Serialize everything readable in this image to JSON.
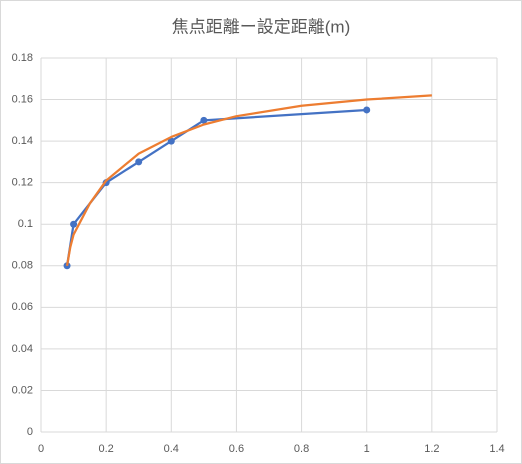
{
  "chart_data": {
    "type": "scatter",
    "title": "焦点距離ー設定距離(m)",
    "series": [
      {
        "color": "#4472c4",
        "markers": true,
        "x": [
          0.08,
          0.1,
          0.2,
          0.3,
          0.4,
          0.5,
          1.0
        ],
        "values": [
          0.08,
          0.1,
          0.12,
          0.13,
          0.14,
          0.15,
          0.155
        ]
      },
      {
        "color": "#ed7d31",
        "markers": false,
        "x": [
          0.08,
          0.09,
          0.1,
          0.15,
          0.2,
          0.3,
          0.4,
          0.5,
          0.6,
          0.8,
          1.0,
          1.2
        ],
        "values": [
          0.08,
          0.089,
          0.095,
          0.11,
          0.121,
          0.134,
          0.142,
          0.148,
          0.152,
          0.157,
          0.16,
          0.162
        ]
      }
    ],
    "xlim": [
      0,
      1.4
    ],
    "xticks": [
      0,
      0.2,
      0.4,
      0.6,
      0.8,
      1,
      1.2,
      1.4
    ],
    "ylim": [
      0,
      0.18
    ],
    "yticks": [
      0,
      0.02,
      0.04,
      0.06,
      0.08,
      0.1,
      0.12,
      0.14,
      0.16,
      0.18
    ],
    "grid": true
  }
}
